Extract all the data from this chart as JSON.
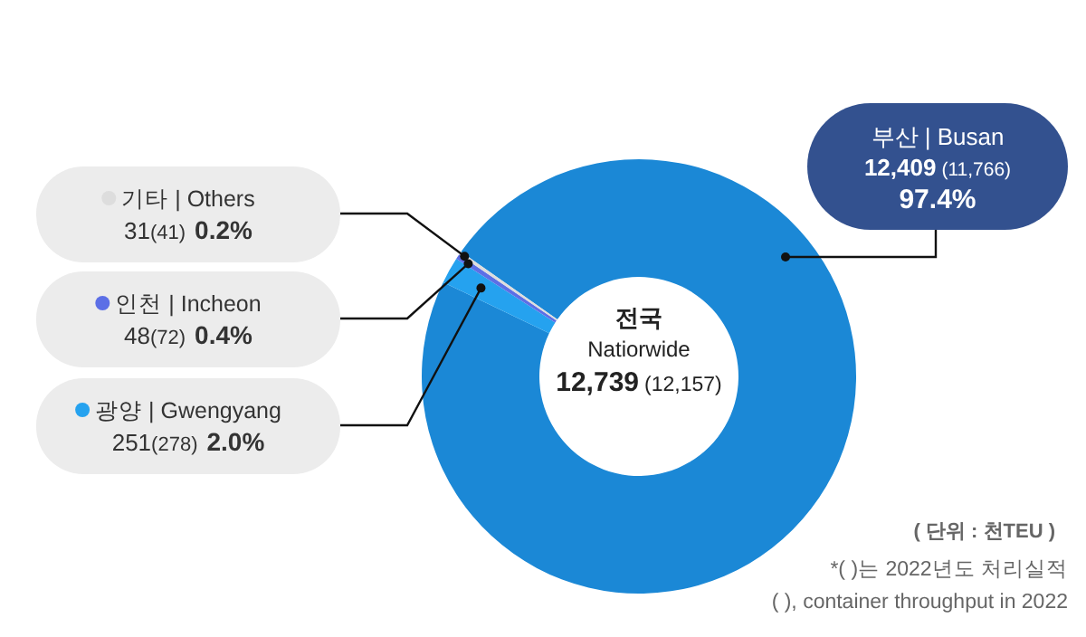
{
  "chart_data": {
    "type": "donut",
    "categories": [
      "부산 | Busan",
      "광양 | Gwengyang",
      "인천 | Incheon",
      "기타 | Others"
    ],
    "values": [
      12409,
      251,
      48,
      31
    ],
    "colors": [
      "#1b88d6",
      "#25a2ef",
      "#5c6fe6",
      "#dddddd"
    ],
    "legend": "left",
    "value_labels": [
      "12,409 (11,766) 97.4%",
      "251(278) 2.0%",
      "48(72) 0.4%",
      "31(41) 0.2%"
    ],
    "annotations": [
      "전국",
      "Natiorwide",
      "12,739 (12,157)",
      "( 단위 : 천TEU )",
      "*( )는 2022년도 처리실적",
      "( ), container throughput in 2022"
    ]
  }
}
